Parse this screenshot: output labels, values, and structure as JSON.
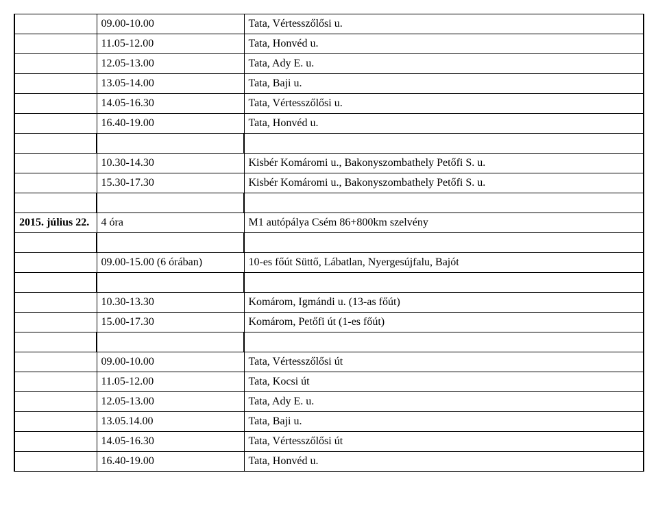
{
  "block1": [
    {
      "time": "09.00-10.00",
      "desc": "Tata, Vértesszőlősi u."
    },
    {
      "time": "11.05-12.00",
      "desc": "Tata, Honvéd u."
    },
    {
      "time": "12.05-13.00",
      "desc": "Tata, Ady E. u."
    },
    {
      "time": "13.05-14.00",
      "desc": "Tata, Baji u."
    },
    {
      "time": "14.05-16.30",
      "desc": "Tata, Vértesszőlősi u."
    },
    {
      "time": "16.40-19.00",
      "desc": "Tata, Honvéd u."
    }
  ],
  "block2": [
    {
      "time": "10.30-14.30",
      "desc": "Kisbér Komáromi u., Bakonyszombathely Petőfi S. u."
    },
    {
      "time": "15.30-17.30",
      "desc": "Kisbér Komáromi u., Bakonyszombathely Petőfi S. u."
    }
  ],
  "header": {
    "date": "2015. július 22.",
    "hours": "4 óra",
    "desc": "M1 autópálya Csém 86+800km szelvény"
  },
  "block3": [
    {
      "time": "09.00-15.00 (6 órában)",
      "desc": "10-es főút Süttő, Lábatlan, Nyergesújfalu, Bajót"
    }
  ],
  "block4": [
    {
      "time": "10.30-13.30",
      "desc": "Komárom, Igmándi u. (13-as főút)"
    },
    {
      "time": "15.00-17.30",
      "desc": "Komárom, Petőfi út (1-es főút)"
    }
  ],
  "block5": [
    {
      "time": "09.00-10.00",
      "desc": "Tata, Vértesszőlősi út"
    },
    {
      "time": "11.05-12.00",
      "desc": "Tata, Kocsi út"
    },
    {
      "time": "12.05-13.00",
      "desc": "Tata, Ady E. u."
    },
    {
      "time": "13.05.14.00",
      "desc": "Tata, Baji u."
    },
    {
      "time": "14.05-16.30",
      "desc": "Tata, Vértesszőlősi út"
    },
    {
      "time": "16.40-19.00",
      "desc": "Tata, Honvéd u."
    }
  ]
}
